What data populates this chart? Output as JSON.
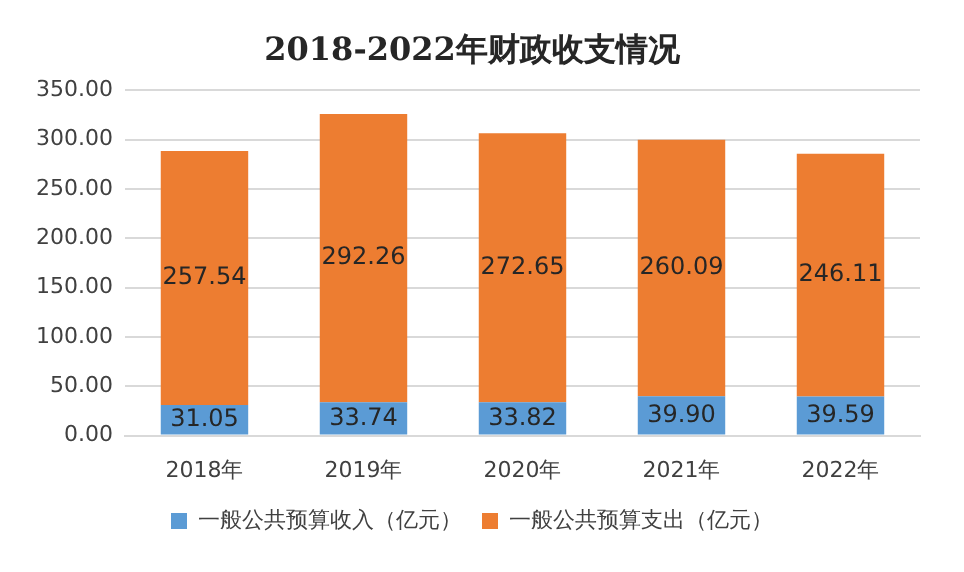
{
  "chart_data": {
    "type": "bar",
    "title": "2018-2022年财政收支情况",
    "categories": [
      "2018年",
      "2019年",
      "2020年",
      "2021年",
      "2022年"
    ],
    "stacked": true,
    "series": [
      {
        "name": "一般公共预算收入（亿元）",
        "color": "#5b9bd5",
        "values": [
          31.05,
          33.74,
          33.82,
          39.9,
          39.59
        ],
        "value_labels": [
          "31.05",
          "33.74",
          "33.82",
          "39.90",
          "39.59"
        ]
      },
      {
        "name": "一般公共预算支出（亿元）",
        "color": "#ed7d31",
        "values": [
          257.54,
          292.26,
          272.65,
          260.09,
          246.11
        ],
        "value_labels": [
          "257.54",
          "292.26",
          "272.65",
          "260.09",
          "246.11"
        ]
      }
    ],
    "ylim": [
      0,
      350
    ],
    "yticks": [
      {
        "value": 0,
        "label": "0.00"
      },
      {
        "value": 50,
        "label": "50.00"
      },
      {
        "value": 100,
        "label": "100.00"
      },
      {
        "value": 150,
        "label": "150.00"
      },
      {
        "value": 200,
        "label": "200.00"
      },
      {
        "value": 250,
        "label": "250.00"
      },
      {
        "value": 300,
        "label": "300.00"
      },
      {
        "value": 350,
        "label": "350.00"
      }
    ],
    "grid": "y",
    "legend": "bottom"
  }
}
